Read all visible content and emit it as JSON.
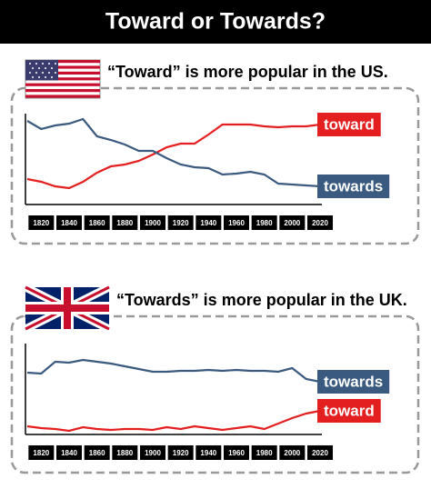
{
  "title": "Toward or Towards?",
  "chart_data": [
    {
      "type": "line",
      "title": "“Toward” is more popular in the US.",
      "x": [
        1810,
        1820,
        1830,
        1840,
        1850,
        1860,
        1870,
        1880,
        1890,
        1900,
        1910,
        1920,
        1930,
        1940,
        1950,
        1960,
        1970,
        1980,
        1990,
        2000,
        2010,
        2020
      ],
      "series": [
        {
          "name": "toward",
          "color": "#e41f1f",
          "values": [
            28,
            25,
            20,
            18,
            25,
            35,
            42,
            44,
            48,
            55,
            63,
            67,
            67,
            77,
            88,
            88,
            88,
            86,
            85,
            86,
            86,
            88
          ]
        },
        {
          "name": "towards",
          "color": "#3a5a80",
          "values": [
            92,
            83,
            87,
            89,
            94,
            75,
            71,
            66,
            59,
            59,
            51,
            44,
            41,
            40,
            33,
            34,
            36,
            33,
            23,
            22,
            21,
            20
          ]
        }
      ],
      "xlim": [
        1810,
        2020
      ],
      "xticks": [
        1820,
        1840,
        1860,
        1880,
        1900,
        1920,
        1940,
        1960,
        1980,
        2000,
        2020
      ],
      "ylim": [
        0,
        100
      ]
    },
    {
      "type": "line",
      "title": "“Towards” is more popular in the UK.",
      "x": [
        1810,
        1820,
        1830,
        1840,
        1850,
        1860,
        1870,
        1880,
        1890,
        1900,
        1910,
        1920,
        1930,
        1940,
        1950,
        1960,
        1970,
        1980,
        1990,
        2000,
        2010,
        2020
      ],
      "series": [
        {
          "name": "towards",
          "color": "#3a5a80",
          "values": [
            68,
            67,
            80,
            79,
            82,
            80,
            78,
            75,
            72,
            69,
            69,
            70,
            70,
            71,
            70,
            71,
            70,
            70,
            69,
            73,
            61,
            58
          ]
        },
        {
          "name": "toward",
          "color": "#e41f1f",
          "values": [
            9,
            7,
            6,
            4,
            8,
            6,
            5,
            6,
            6,
            5,
            8,
            6,
            9,
            7,
            5,
            7,
            9,
            6,
            12,
            18,
            23,
            26
          ]
        }
      ],
      "xlim": [
        1810,
        2020
      ],
      "xticks": [
        1820,
        1840,
        1860,
        1880,
        1900,
        1920,
        1940,
        1960,
        1980,
        2000,
        2020
      ],
      "ylim": [
        0,
        100
      ]
    }
  ]
}
